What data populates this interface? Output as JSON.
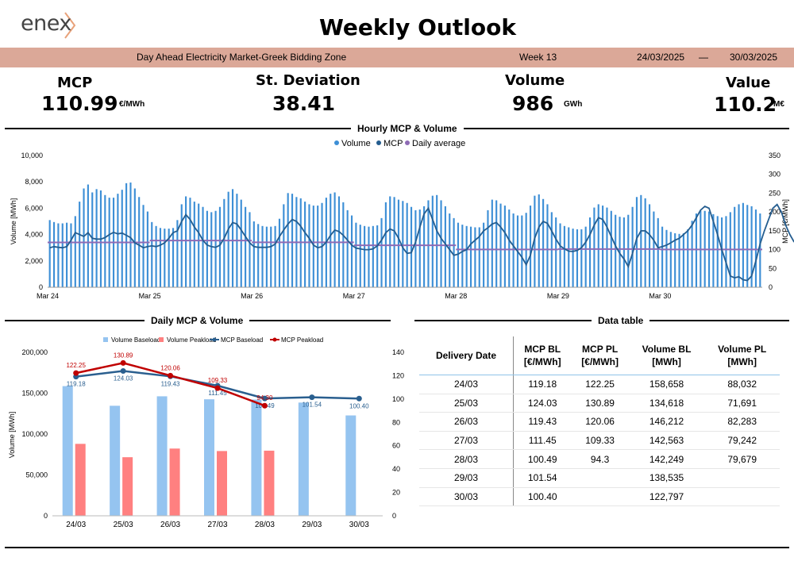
{
  "header": {
    "logo_text": "enex",
    "title": "Weekly Outlook",
    "market": "Day Ahead Electricity Market-Greek Bidding Zone",
    "week": "Week 13",
    "date_from": "24/03/2025",
    "dash": "—",
    "date_to": "30/03/2025"
  },
  "kpis": {
    "mcp": {
      "label": "MCP",
      "value": "110.99",
      "unit": "€/MWh"
    },
    "stdev": {
      "label": "St. Deviation",
      "value": "38.41"
    },
    "volume": {
      "label": "Volume",
      "value": "986",
      "unit": "GWh"
    },
    "value": {
      "label": "Value",
      "value": "110.2",
      "unit": "M€"
    }
  },
  "sections": {
    "hourly": "Hourly MCP & Volume",
    "daily": "Daily MCP & Volume",
    "table": "Data table"
  },
  "colors": {
    "volume": "#3d8fd6",
    "mcp": "#245d8f",
    "avg": "#8e6bb5",
    "base_bar": "#95c4f0",
    "peak_bar": "#ff8080",
    "mcp_base": "#2a5f8f",
    "mcp_peak": "#c00000"
  },
  "chart_data": [
    {
      "type": "bar+line",
      "title": "Hourly MCP & Volume",
      "legend": [
        "Volume",
        "MCP",
        "Daily average"
      ],
      "ylabel": "Volume [MWh]",
      "y2label": "MCP [€/MWh]",
      "ylim": [
        0,
        10000
      ],
      "y_ticks": [
        "0",
        "2,000",
        "4,000",
        "6,000",
        "8,000",
        "10,000"
      ],
      "y2lim": [
        0,
        350
      ],
      "y2_ticks": [
        "0",
        "50",
        "100",
        "150",
        "200",
        "250",
        "300",
        "350"
      ],
      "x_labels": [
        "Mar 24",
        "Mar 25",
        "Mar 26",
        "Mar 27",
        "Mar 28",
        "Mar 29",
        "Mar 30"
      ],
      "volume": [
        5100,
        4950,
        4850,
        4850,
        4900,
        4850,
        5400,
        6500,
        7500,
        7800,
        7200,
        7450,
        7350,
        7000,
        6800,
        6800,
        7100,
        7400,
        7900,
        7950,
        7500,
        6850,
        6250,
        5750,
        4950,
        4650,
        4500,
        4450,
        4450,
        4500,
        5100,
        6300,
        6900,
        6800,
        6500,
        6350,
        6100,
        5800,
        5700,
        5800,
        6100,
        6700,
        7250,
        7450,
        7100,
        6650,
        6100,
        5700,
        5000,
        4800,
        4650,
        4600,
        4600,
        4650,
        5200,
        6300,
        7150,
        7100,
        6850,
        6750,
        6500,
        6300,
        6200,
        6200,
        6400,
        6800,
        7100,
        7200,
        6900,
        6450,
        5850,
        5450,
        4900,
        4750,
        4650,
        4600,
        4650,
        4700,
        5250,
        6450,
        6900,
        6850,
        6650,
        6550,
        6400,
        6100,
        5850,
        5900,
        6150,
        6600,
        6950,
        7000,
        6600,
        6150,
        5600,
        5250,
        4900,
        4750,
        4650,
        4600,
        4550,
        4550,
        4900,
        5850,
        6650,
        6600,
        6350,
        6200,
        5900,
        5600,
        5450,
        5450,
        5650,
        6200,
        6950,
        7050,
        6700,
        6300,
        5700,
        5300,
        4850,
        4650,
        4550,
        4450,
        4400,
        4400,
        4600,
        5300,
        6050,
        6300,
        6200,
        6050,
        5800,
        5500,
        5350,
        5300,
        5500,
        6100,
        6850,
        7000,
        6750,
        6300,
        5750,
        5250,
        4600,
        4350,
        4200,
        4100,
        4050,
        4100,
        4400,
        5050,
        5600,
        5800,
        5800,
        5750,
        5550,
        5400,
        5300,
        5400,
        5700,
        6100,
        6300,
        6400,
        6250,
        6150,
        5900,
        5600
      ],
      "mcp": [
        105,
        108,
        106,
        105,
        108,
        125,
        145,
        140,
        135,
        145,
        130,
        128,
        128,
        132,
        140,
        146,
        142,
        144,
        138,
        132,
        118,
        112,
        105,
        108,
        110,
        108,
        112,
        118,
        130,
        145,
        150,
        175,
        193,
        180,
        160,
        145,
        125,
        112,
        108,
        106,
        112,
        130,
        155,
        172,
        168,
        152,
        135,
        118,
        108,
        106,
        106,
        106,
        108,
        115,
        135,
        152,
        168,
        180,
        175,
        162,
        145,
        130,
        112,
        105,
        108,
        120,
        138,
        152,
        148,
        138,
        125,
        112,
        104,
        102,
        100,
        100,
        102,
        110,
        125,
        145,
        155,
        150,
        130,
        105,
        90,
        92,
        120,
        160,
        195,
        210,
        180,
        150,
        130,
        115,
        100,
        85,
        88,
        95,
        100,
        115,
        125,
        135,
        150,
        158,
        168,
        172,
        160,
        145,
        125,
        110,
        95,
        80,
        60,
        85,
        130,
        160,
        175,
        170,
        150,
        128,
        110,
        102,
        96,
        95,
        98,
        105,
        120,
        140,
        165,
        185,
        180,
        160,
        135,
        110,
        90,
        75,
        55,
        90,
        130,
        150,
        150,
        140,
        125,
        105,
        108,
        112,
        118,
        125,
        130,
        140,
        150,
        165,
        185,
        205,
        215,
        210,
        175,
        140,
        100,
        65,
        30,
        25,
        28,
        20,
        18,
        30,
        70,
        115,
        150,
        180,
        210,
        220,
        200,
        165,
        140,
        120
      ],
      "daily_average": [
        119.18,
        124.03,
        119.43,
        111.45,
        100.49,
        101.54,
        100.4
      ]
    },
    {
      "type": "bar+line",
      "title": "Daily MCP & Volume",
      "legend": [
        "Volume Baseload",
        "Volume Peakload",
        "MCP Baseload",
        "MCP Peakload"
      ],
      "categories": [
        "24/03",
        "25/03",
        "26/03",
        "27/03",
        "28/03",
        "29/03",
        "30/03"
      ],
      "ylabel": "Volume [MWh]",
      "y2label": "MCP [€/MWh]",
      "ylim": [
        0,
        200000
      ],
      "y_ticks": [
        "0",
        "50,000",
        "100,000",
        "150,000",
        "200,000"
      ],
      "y2lim": [
        0,
        140
      ],
      "y2_ticks": [
        "0",
        "20",
        "40",
        "60",
        "80",
        "100",
        "120",
        "140"
      ],
      "series": [
        {
          "name": "Volume Baseload",
          "values": [
            158658,
            134618,
            146212,
            142563,
            142249,
            138535,
            122797
          ]
        },
        {
          "name": "Volume Peakload",
          "values": [
            88032,
            71691,
            82283,
            79242,
            79679,
            null,
            null
          ]
        },
        {
          "name": "MCP Baseload",
          "values": [
            119.18,
            124.03,
            119.43,
            111.45,
            100.49,
            101.54,
            100.4
          ],
          "labels": [
            "119.18",
            "124.03",
            "119.43",
            "111.45",
            "100.49",
            "101.54",
            "100.40"
          ]
        },
        {
          "name": "MCP Peakload",
          "values": [
            122.25,
            130.89,
            120.06,
            109.33,
            94.3,
            null,
            null
          ],
          "labels": [
            "122.25",
            "130.89",
            "120.06",
            "109.33",
            "94.30",
            "",
            ""
          ]
        }
      ]
    },
    {
      "type": "table",
      "title": "Data table",
      "columns": [
        [
          "Delivery Date",
          ""
        ],
        [
          "MCP BL",
          "[€/MWh]"
        ],
        [
          "MCP PL",
          "[€/MWh]"
        ],
        [
          "Volume BL",
          "[MWh]"
        ],
        [
          "Volume PL",
          "[MWh]"
        ]
      ],
      "rows": [
        [
          "24/03",
          "119.18",
          "122.25",
          "158,658",
          "88,032"
        ],
        [
          "25/03",
          "124.03",
          "130.89",
          "134,618",
          "71,691"
        ],
        [
          "26/03",
          "119.43",
          "120.06",
          "146,212",
          "82,283"
        ],
        [
          "27/03",
          "111.45",
          "109.33",
          "142,563",
          "79,242"
        ],
        [
          "28/03",
          "100.49",
          "94.3",
          "142,249",
          "79,679"
        ],
        [
          "29/03",
          "101.54",
          "",
          "138,535",
          ""
        ],
        [
          "30/03",
          "100.40",
          "",
          "122,797",
          ""
        ]
      ]
    }
  ]
}
